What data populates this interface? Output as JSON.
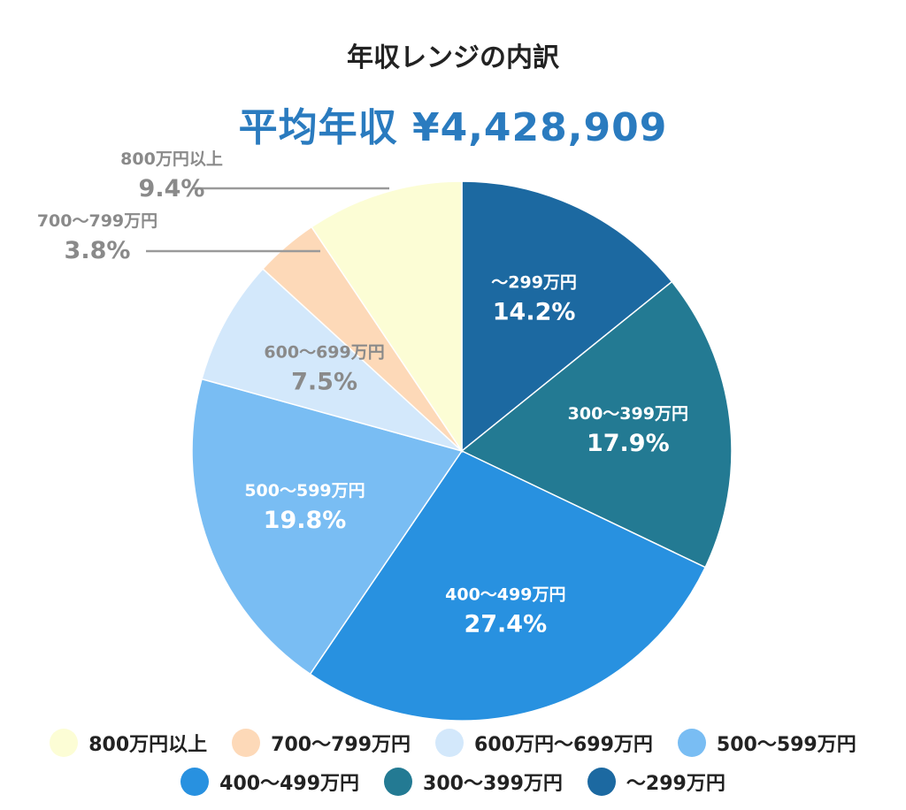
{
  "title": "年収レンジの内訳",
  "subtitle": "平均年収 ¥4,428,909",
  "colors": {
    "subtitle": "#2a7bbf",
    "outside_label": "#8a8a8a",
    "leader_line": "#9a9a9a"
  },
  "chart_data": {
    "type": "pie",
    "start_angle_deg": 0,
    "direction": "clockwise",
    "slices": [
      {
        "label": "～299万円",
        "value": 14.2,
        "pct_label": "14.2%",
        "color": "#1c69a1",
        "text_color": "#ffffff",
        "label_position": "inside"
      },
      {
        "label": "300～399万円",
        "value": 17.9,
        "pct_label": "17.9%",
        "color": "#237a93",
        "text_color": "#ffffff",
        "label_position": "inside"
      },
      {
        "label": "400～499万円",
        "value": 27.4,
        "pct_label": "27.4%",
        "color": "#2891e0",
        "text_color": "#ffffff",
        "label_position": "inside"
      },
      {
        "label": "500～599万円",
        "value": 19.8,
        "pct_label": "19.8%",
        "color": "#79bdf3",
        "text_color": "#ffffff",
        "label_position": "inside"
      },
      {
        "label": "600～699万円",
        "value": 7.5,
        "pct_label": "7.5%",
        "color": "#d3e8fb",
        "text_color": "#8a8a8a",
        "label_position": "inside"
      },
      {
        "label": "700～799万円",
        "value": 3.8,
        "pct_label": "3.8%",
        "color": "#fdd9b8",
        "text_color": "#8a8a8a",
        "label_position": "outside"
      },
      {
        "label": "800万円以上",
        "value": 9.4,
        "pct_label": "9.4%",
        "color": "#fcfdd5",
        "text_color": "#8a8a8a",
        "label_position": "outside"
      }
    ],
    "legend": {
      "placement": "bottom",
      "rows": [
        [
          {
            "label": "800万円以上",
            "color": "#fcfdd5"
          },
          {
            "label": "700～799万円",
            "color": "#fdd9b8"
          },
          {
            "label": "600万円～699万円",
            "color": "#d3e8fb"
          },
          {
            "label": "500～599万円",
            "color": "#79bdf3"
          }
        ],
        [
          {
            "label": "400～499万円",
            "color": "#2891e0"
          },
          {
            "label": "300～399万円",
            "color": "#237a93"
          },
          {
            "label": "～299万円",
            "color": "#1c69a1"
          }
        ]
      ]
    }
  }
}
